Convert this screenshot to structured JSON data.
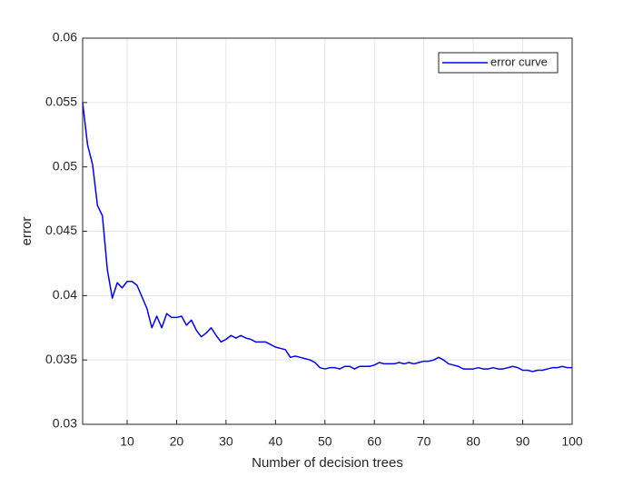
{
  "chart_data": {
    "type": "line",
    "xlabel": "Number of decision trees",
    "ylabel": "error",
    "x": [
      1,
      2,
      3,
      4,
      5,
      6,
      7,
      8,
      9,
      10,
      11,
      12,
      13,
      14,
      15,
      16,
      17,
      18,
      19,
      20,
      21,
      22,
      23,
      24,
      25,
      26,
      27,
      28,
      29,
      30,
      31,
      32,
      33,
      34,
      35,
      36,
      37,
      38,
      39,
      40,
      41,
      42,
      43,
      44,
      45,
      46,
      47,
      48,
      49,
      50,
      51,
      52,
      53,
      54,
      55,
      56,
      57,
      58,
      59,
      60,
      61,
      62,
      63,
      64,
      65,
      66,
      67,
      68,
      69,
      70,
      71,
      72,
      73,
      74,
      75,
      76,
      77,
      78,
      79,
      80,
      81,
      82,
      83,
      84,
      85,
      86,
      87,
      88,
      89,
      90,
      91,
      92,
      93,
      94,
      95,
      96,
      97,
      98,
      99,
      100
    ],
    "series": [
      {
        "name": "error curve",
        "color": "#0000ff",
        "values": [
          0.055,
          0.0517,
          0.0502,
          0.047,
          0.0462,
          0.042,
          0.0398,
          0.041,
          0.0406,
          0.0411,
          0.0411,
          0.0408,
          0.0399,
          0.039,
          0.0375,
          0.0384,
          0.0375,
          0.0386,
          0.0383,
          0.0383,
          0.0384,
          0.0377,
          0.0381,
          0.0373,
          0.0368,
          0.0371,
          0.0375,
          0.0369,
          0.0364,
          0.0366,
          0.0369,
          0.0367,
          0.0369,
          0.0367,
          0.0366,
          0.0364,
          0.0364,
          0.0364,
          0.0362,
          0.036,
          0.0359,
          0.0358,
          0.0352,
          0.0353,
          0.0352,
          0.0351,
          0.035,
          0.0348,
          0.0344,
          0.0343,
          0.0344,
          0.0344,
          0.0343,
          0.0345,
          0.0345,
          0.0343,
          0.0345,
          0.0345,
          0.0345,
          0.0346,
          0.0348,
          0.0347,
          0.0347,
          0.0347,
          0.0348,
          0.0347,
          0.0348,
          0.0347,
          0.0348,
          0.0349,
          0.0349,
          0.035,
          0.0352,
          0.035,
          0.0347,
          0.0346,
          0.0345,
          0.0343,
          0.0343,
          0.0343,
          0.0344,
          0.0343,
          0.0343,
          0.0344,
          0.0343,
          0.0343,
          0.0344,
          0.0345,
          0.0344,
          0.0342,
          0.0342,
          0.0341,
          0.0342,
          0.0342,
          0.0343,
          0.0344,
          0.0344,
          0.0345,
          0.0344,
          0.0344
        ]
      }
    ],
    "xlim": [
      1,
      100
    ],
    "xticks": [
      10,
      20,
      30,
      40,
      50,
      60,
      70,
      80,
      90,
      100
    ],
    "ylim": [
      0.03,
      0.06
    ],
    "yticks": [
      0.03,
      0.035,
      0.04,
      0.045,
      0.05,
      0.055,
      0.06
    ],
    "grid": true,
    "legend": "northeast"
  }
}
